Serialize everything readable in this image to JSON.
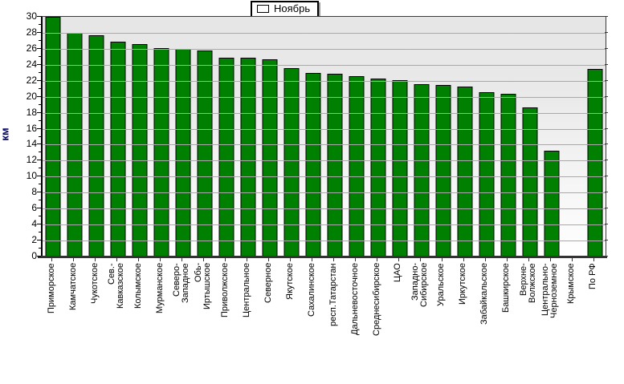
{
  "chart_data": {
    "type": "bar",
    "title": "",
    "xlabel": "",
    "ylabel": "км",
    "ylim": [
      0,
      30
    ],
    "ytick_step": 2,
    "grid": true,
    "legend_position": "top-center",
    "bar_color": "#008000",
    "bar_border_color": "#000000",
    "axis_title_color": "#00006b",
    "categories": [
      "Приморское",
      "Камчатское",
      "Чукотское",
      "Сев.-\nКавказское",
      "Колымское",
      "Мурманское",
      "Северо-\nЗападное",
      "Обь-\nИртышское",
      "Приволжское",
      "Центральное",
      "Северное",
      "Якутское",
      "Сахалинское",
      "респ.Татарстан",
      "Дальневосточное",
      "Среднесибирское",
      "ЦАО",
      "Западно-\nСибирское",
      "Уральское",
      "Иркутское",
      "Забайкальское",
      "Башкирское",
      "Верхне-\nВолжское",
      "Центрально-\nЧерноземное",
      "Крымское",
      "По РФ"
    ],
    "series": [
      {
        "name": "Ноябрь",
        "color": "#008000",
        "values": [
          30,
          28,
          27.7,
          26.9,
          26.6,
          26.1,
          26,
          25.8,
          24.9,
          24.9,
          24.7,
          23.6,
          23,
          22.9,
          22.6,
          22.3,
          22.1,
          21.6,
          21.5,
          21.3,
          20.6,
          20.4,
          18.7,
          13.2,
          0,
          23.5
        ]
      }
    ]
  }
}
